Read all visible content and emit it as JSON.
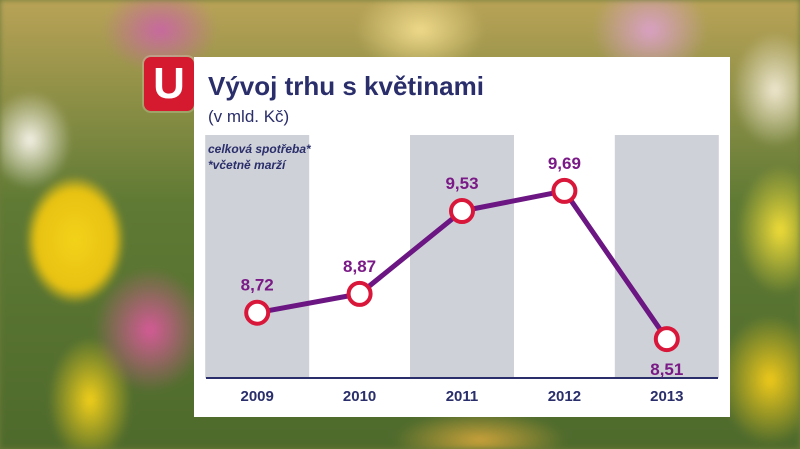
{
  "logo": {
    "text": "U"
  },
  "chart_data": {
    "type": "line",
    "title": "Vývoj trhu s květinami",
    "subtitle": "(v mld. Kč)",
    "categories": [
      "2009",
      "2010",
      "2011",
      "2012",
      "2013"
    ],
    "series": [
      {
        "name": "celková spotřeba*",
        "values": [
          8.72,
          8.87,
          9.53,
          9.69,
          8.51
        ],
        "labels": [
          "8,72",
          "8,87",
          "9,53",
          "9,69",
          "8,51"
        ]
      }
    ],
    "footnote": "*včetně marží",
    "ylim": [
      8.2,
      10.0
    ],
    "grid": false,
    "legend": "top-left",
    "colors": {
      "line": "#6b1682",
      "marker": "#d8173a",
      "band": "#cfd1d8",
      "text": "#2a2e6a"
    }
  }
}
